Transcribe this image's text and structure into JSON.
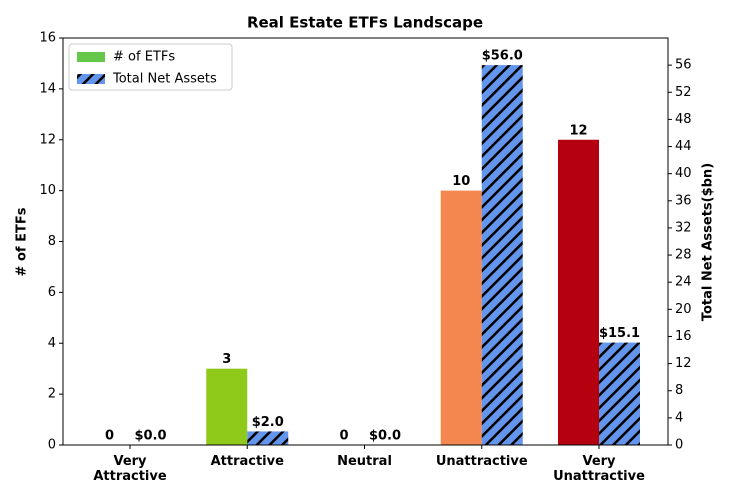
{
  "chart_data": {
    "type": "bar",
    "title": "Real Estate ETFs Landscape",
    "categories": [
      "Very Attractive",
      "Attractive",
      "Neutral",
      "Unattractive",
      "Very Unattractive"
    ],
    "ylabel": "# of ETFs",
    "y2label": "Total Net Assets($bn)",
    "ylim": [
      0,
      16
    ],
    "yticks": [
      0,
      2,
      4,
      6,
      8,
      10,
      12,
      14,
      16
    ],
    "y2lim": [
      0,
      60
    ],
    "y2ticks": [
      0,
      4,
      8,
      12,
      16,
      20,
      24,
      28,
      32,
      36,
      40,
      44,
      48,
      52,
      56
    ],
    "legend": "upper left",
    "series": [
      {
        "name": "# of ETFs",
        "color": "#66c84a",
        "colors": [
          "#1a9641",
          "#8fca1a",
          "#ffffbf",
          "#f4874f",
          "#b5000f"
        ],
        "values": [
          0,
          3,
          0,
          10,
          12
        ]
      },
      {
        "name": "Total Net Assets",
        "color": "#6495ed",
        "hatch": true,
        "axis": "y2",
        "values": [
          0,
          2.0,
          0,
          56.0,
          15.1
        ],
        "value_labels": [
          "$0.0",
          "$2.0",
          "$0.0",
          "$56.0",
          "$15.1"
        ]
      }
    ]
  }
}
